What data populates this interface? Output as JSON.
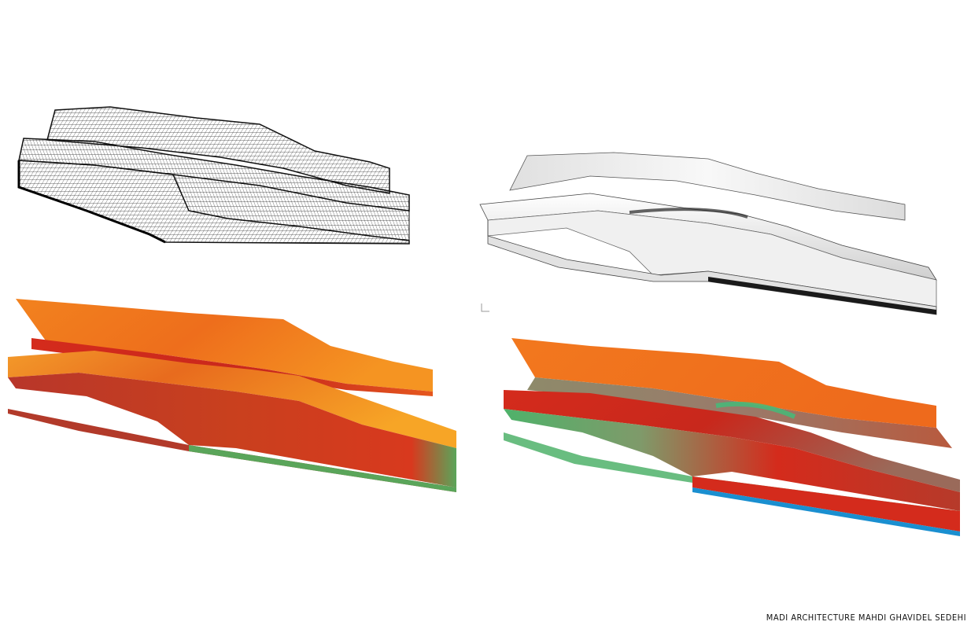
{
  "credit": "MADI ARCHITECTURE MAHDI GHAVIDEL SEDEHI",
  "panels": [
    {
      "name": "wireframe-mesh-view",
      "style": "wireframe"
    },
    {
      "name": "shaded-render-view",
      "style": "grayscale-shaded"
    },
    {
      "name": "analysis-heatmap-orange",
      "style": "orange-red-heatmap"
    },
    {
      "name": "analysis-heatmap-multicolor",
      "style": "red-green-blue-heatmap"
    }
  ],
  "colors": {
    "mesh_line": "#1a1a1a",
    "shaded_light": "#f4f4f4",
    "shaded_dark": "#2a2a2a",
    "heat_orange": "#f2821e",
    "heat_red": "#d42b1c",
    "heat_green": "#5aa55a",
    "heat_blue": "#1a8fd0"
  }
}
